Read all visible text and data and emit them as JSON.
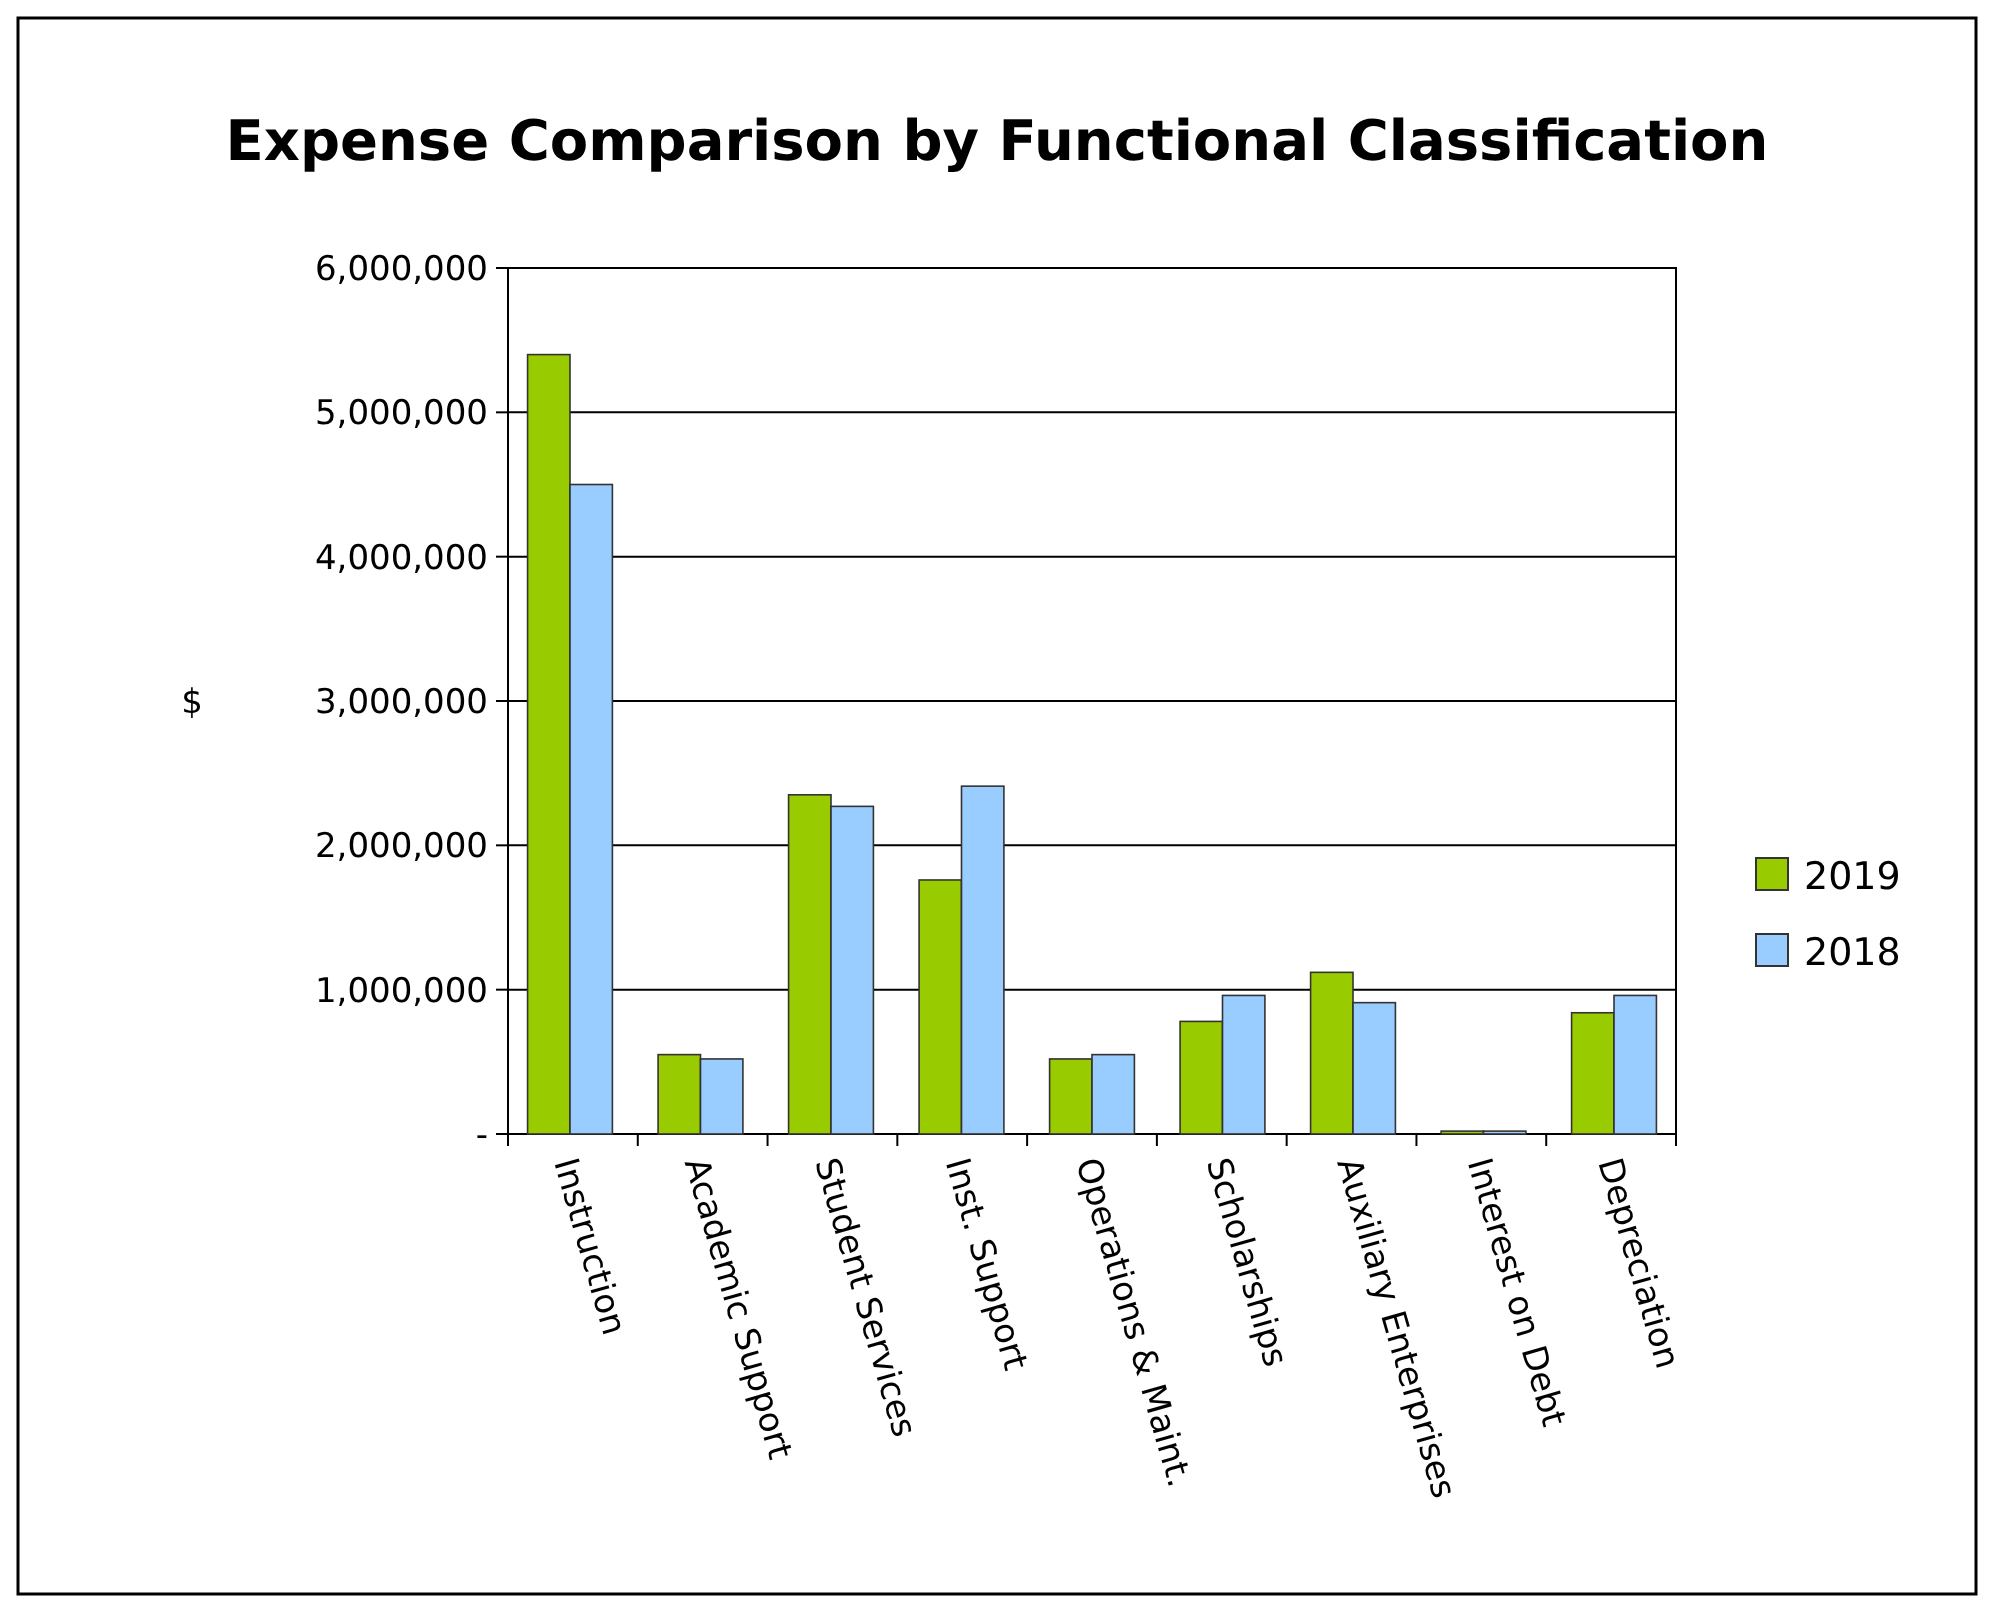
{
  "chart_data": {
    "type": "bar",
    "title": "Expense Comparison by Functional Classification",
    "ylabel": "$",
    "categories": [
      "Instruction",
      "Academic Support",
      "Student Services",
      "Inst. Support",
      "Operations & Maint.",
      "Scholarships",
      "Auxiliary Enterprises",
      "Interest on Debt",
      "Depreciation"
    ],
    "series": [
      {
        "name": "2019",
        "color": "#99cc00",
        "values": [
          5400000,
          550000,
          2350000,
          1760000,
          520000,
          780000,
          1120000,
          20000,
          840000
        ]
      },
      {
        "name": "2018",
        "color": "#99ccff",
        "values": [
          4500000,
          520000,
          2270000,
          2410000,
          550000,
          960000,
          910000,
          20000,
          960000
        ]
      }
    ],
    "ylim": [
      0,
      6000000
    ],
    "yticks": [
      {
        "value": 0,
        "label": "-"
      },
      {
        "value": 1000000,
        "label": "1,000,000"
      },
      {
        "value": 2000000,
        "label": "2,000,000"
      },
      {
        "value": 3000000,
        "label": "3,000,000"
      },
      {
        "value": 4000000,
        "label": "4,000,000"
      },
      {
        "value": 5000000,
        "label": "5,000,000"
      },
      {
        "value": 6000000,
        "label": "6,000,000"
      }
    ],
    "grid": "y",
    "legend": "right"
  }
}
